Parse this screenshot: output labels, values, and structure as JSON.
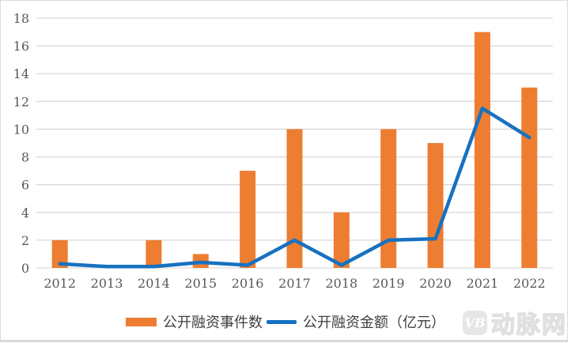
{
  "chart_data": {
    "type": "bar+line",
    "title": "",
    "xlabel": "",
    "ylabel": "",
    "categories": [
      "2012",
      "2013",
      "2014",
      "2015",
      "2016",
      "2017",
      "2018",
      "2019",
      "2020",
      "2021",
      "2022"
    ],
    "series": [
      {
        "name": "公开融资事件数",
        "type": "bar",
        "color": "#ED7D31",
        "values": [
          2,
          0,
          2,
          1,
          7,
          10,
          4,
          10,
          9,
          17,
          13
        ]
      },
      {
        "name": "公开融资金额（亿元）",
        "type": "line",
        "color": "#1771C1",
        "values": [
          0.3,
          0.1,
          0.1,
          0.4,
          0.2,
          2,
          0.2,
          2,
          2.1,
          11.5,
          9.4
        ]
      }
    ],
    "ylim": [
      0,
      18
    ],
    "ytick_step": 2,
    "grid": true,
    "gridline_color": "#D9D9D9",
    "axis_text_color": "#595959",
    "legend_position": "bottom"
  },
  "legend": {
    "items": [
      {
        "label": "公开融资事件数",
        "color": "#ED7D31",
        "shape": "rect"
      },
      {
        "label": "公开融资金额（亿元）",
        "color": "#1771C1",
        "shape": "line"
      }
    ]
  },
  "watermark": {
    "badge": "VB",
    "text": "动脉网"
  }
}
